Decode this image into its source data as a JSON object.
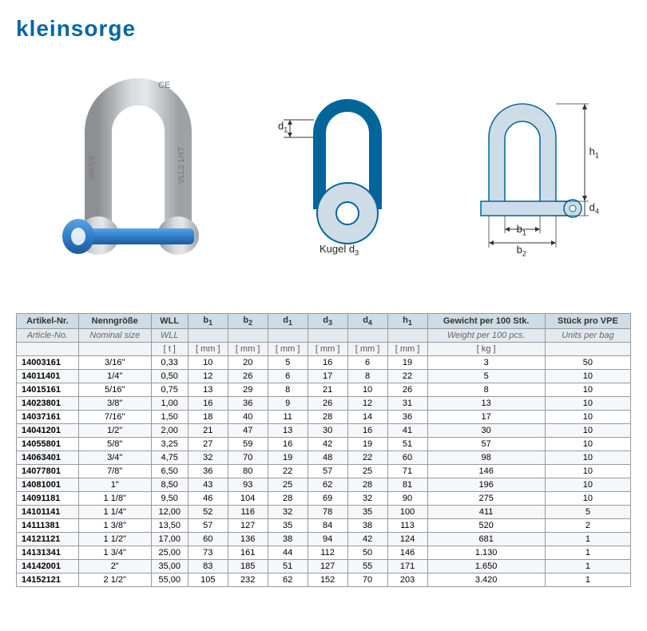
{
  "brand": "kleinsorge",
  "diagram1": {
    "d1": "d₁",
    "kugel": "Kugel d₃"
  },
  "diagram2": {
    "h1": "h₁",
    "d4": "d₄",
    "b1": "b₁",
    "b2": "b₂"
  },
  "colors": {
    "brand": "#0066a4",
    "header_bg": "#cddce6",
    "header2_bg": "#e2eaf0",
    "header3_bg": "#f0f4f7",
    "border": "#999999",
    "shackle_body": "#b9bdc0",
    "shackle_pin": "#2f7ecb",
    "diagram_body": "#cddce6",
    "diagram_stroke": "#006699"
  },
  "table": {
    "head1": [
      "Artikel-Nr.",
      "Nenngröße",
      "WLL",
      "b₁",
      "b₂",
      "d₁",
      "d₃",
      "d₄",
      "h₁",
      "Gewicht per 100 Stk.",
      "Stück pro VPE"
    ],
    "head2": [
      "Article-No.",
      "Nominal size",
      "WLL",
      "",
      "",
      "",
      "",
      "",
      "",
      "Weight per 100 pcs.",
      "Units per bag"
    ],
    "head3": [
      "",
      "",
      "[ t ]",
      "[ mm ]",
      "[ mm ]",
      "[ mm ]",
      "[ mm ]",
      "[ mm ]",
      "[ mm ]",
      "[ kg ]",
      ""
    ],
    "rows": [
      [
        "14003161",
        "3/16\"",
        "0,33",
        "10",
        "20",
        "5",
        "16",
        "6",
        "19",
        "3",
        "50"
      ],
      [
        "14011401",
        "1/4\"",
        "0,50",
        "12",
        "26",
        "6",
        "17",
        "8",
        "22",
        "5",
        "10"
      ],
      [
        "14015161",
        "5/16\"",
        "0,75",
        "13",
        "29",
        "8",
        "21",
        "10",
        "26",
        "8",
        "10"
      ],
      [
        "14023801",
        "3/8\"",
        "1,00",
        "16",
        "36",
        "9",
        "26",
        "12",
        "31",
        "13",
        "10"
      ],
      [
        "14037161",
        "7/16\"",
        "1,50",
        "18",
        "40",
        "11",
        "28",
        "14",
        "36",
        "17",
        "10"
      ],
      [
        "14041201",
        "1/2\"",
        "2,00",
        "21",
        "47",
        "13",
        "30",
        "16",
        "41",
        "30",
        "10"
      ],
      [
        "14055801",
        "5/8\"",
        "3,25",
        "27",
        "59",
        "16",
        "42",
        "19",
        "51",
        "57",
        "10"
      ],
      [
        "14063401",
        "3/4\"",
        "4,75",
        "32",
        "70",
        "19",
        "48",
        "22",
        "60",
        "98",
        "10"
      ],
      [
        "14077801",
        "7/8\"",
        "6,50",
        "36",
        "80",
        "22",
        "57",
        "25",
        "71",
        "146",
        "10"
      ],
      [
        "14081001",
        "1\"",
        "8,50",
        "43",
        "93",
        "25",
        "62",
        "28",
        "81",
        "196",
        "10"
      ],
      [
        "14091181",
        "1 1/8\"",
        "9,50",
        "46",
        "104",
        "28",
        "69",
        "32",
        "90",
        "275",
        "10"
      ],
      [
        "14101141",
        "1 1/4\"",
        "12,00",
        "52",
        "116",
        "32",
        "78",
        "35",
        "100",
        "411",
        "5"
      ],
      [
        "14111381",
        "1 3/8\"",
        "13,50",
        "57",
        "127",
        "35",
        "84",
        "38",
        "113",
        "520",
        "2"
      ],
      [
        "14121121",
        "1 1/2\"",
        "17,00",
        "60",
        "136",
        "38",
        "94",
        "42",
        "124",
        "681",
        "1"
      ],
      [
        "14131341",
        "1 3/4\"",
        "25,00",
        "73",
        "161",
        "44",
        "112",
        "50",
        "146",
        "1.130",
        "1"
      ],
      [
        "14142001",
        "2\"",
        "35,00",
        "83",
        "185",
        "51",
        "127",
        "55",
        "171",
        "1.650",
        "1"
      ],
      [
        "14152121",
        "2 1/2\"",
        "55,00",
        "105",
        "232",
        "62",
        "152",
        "70",
        "203",
        "3.420",
        "1"
      ]
    ]
  }
}
